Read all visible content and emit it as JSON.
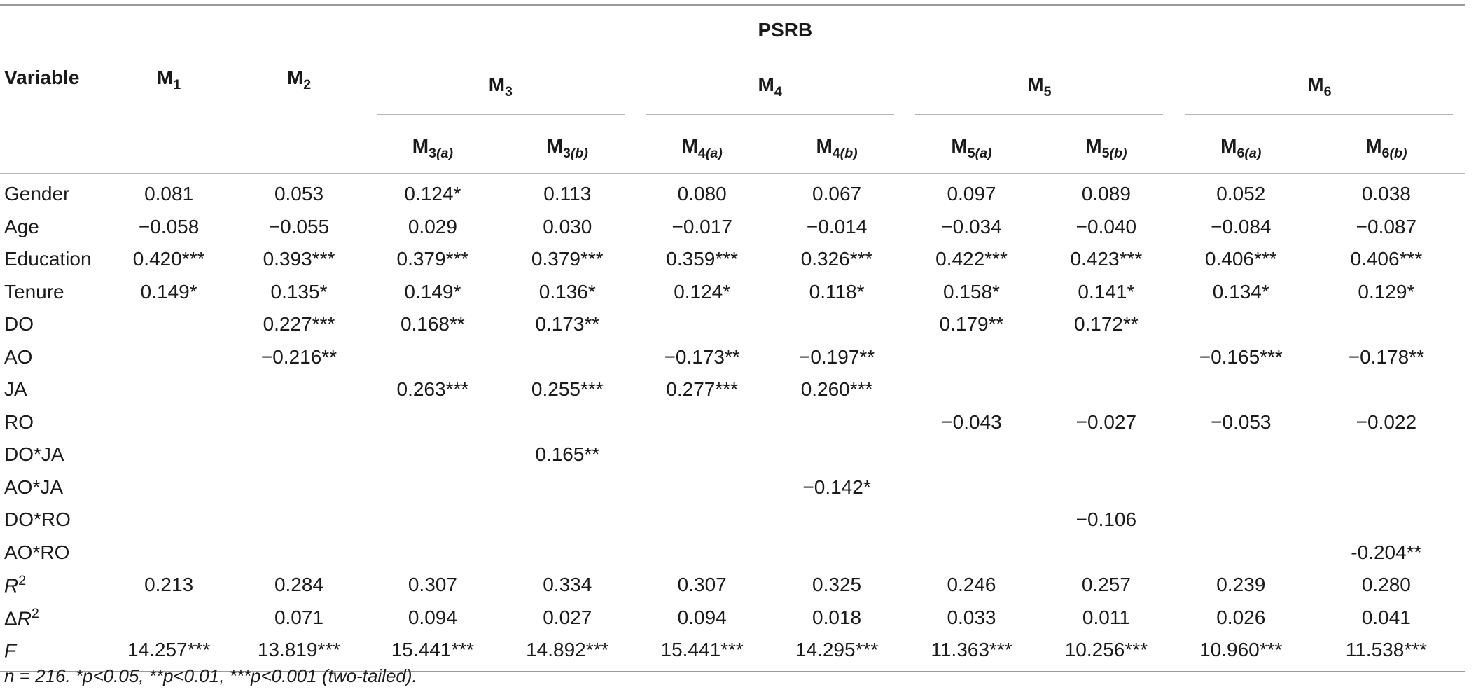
{
  "dependent_variable": "PSRB",
  "variable_header": "Variable",
  "models": {
    "m1": {
      "base": "M",
      "sub": "1"
    },
    "m2": {
      "base": "M",
      "sub": "2"
    },
    "m3": {
      "base": "M",
      "sub": "3",
      "a_sub": "3",
      "a_tag": "(a)",
      "b_sub": "3",
      "b_tag": "(b)"
    },
    "m4": {
      "base": "M",
      "sub": "4",
      "a_sub": "4",
      "a_tag": "(a)",
      "b_sub": "4",
      "b_tag": "(b)"
    },
    "m5": {
      "base": "M",
      "sub": "5",
      "a_sub": "5",
      "a_tag": "(a)",
      "b_sub": "5",
      "b_tag": "(b)"
    },
    "m6": {
      "base": "M",
      "sub": "6",
      "a_sub": "6",
      "a_tag": "(a)",
      "b_sub": "6",
      "b_tag": "(b)"
    }
  },
  "rows": [
    {
      "label": "Gender",
      "cells": [
        "0.081",
        "0.053",
        "0.124*",
        "0.113",
        "0.080",
        "0.067",
        "0.097",
        "0.089",
        "0.052",
        "0.038"
      ]
    },
    {
      "label": "Age",
      "cells": [
        "−0.058",
        "−0.055",
        "0.029",
        "0.030",
        "−0.017",
        "−0.014",
        "−0.034",
        "−0.040",
        "−0.084",
        "−0.087"
      ]
    },
    {
      "label": "Education",
      "cells": [
        "0.420***",
        "0.393***",
        "0.379***",
        "0.379***",
        "0.359***",
        "0.326***",
        "0.422***",
        "0.423***",
        "0.406***",
        "0.406***"
      ]
    },
    {
      "label": "Tenure",
      "cells": [
        "0.149*",
        "0.135*",
        "0.149*",
        "0.136*",
        "0.124*",
        "0.118*",
        "0.158*",
        "0.141*",
        "0.134*",
        "0.129*"
      ]
    },
    {
      "label": "DO",
      "cells": [
        "",
        "0.227***",
        "0.168**",
        "0.173**",
        "",
        "",
        "0.179**",
        "0.172**",
        "",
        ""
      ]
    },
    {
      "label": "AO",
      "cells": [
        "",
        "−0.216**",
        "",
        "",
        "−0.173**",
        "−0.197**",
        "",
        "",
        "−0.165***",
        "−0.178**"
      ]
    },
    {
      "label": "JA",
      "cells": [
        "",
        "",
        "0.263***",
        "0.255***",
        "0.277***",
        "0.260***",
        "",
        "",
        "",
        ""
      ]
    },
    {
      "label": "RO",
      "cells": [
        "",
        "",
        "",
        "",
        "",
        "",
        "−0.043",
        "−0.027",
        "−0.053",
        "−0.022"
      ]
    },
    {
      "label": "DO*JA",
      "cells": [
        "",
        "",
        "",
        "0.165**",
        "",
        "",
        "",
        "",
        "",
        ""
      ]
    },
    {
      "label": "AO*JA",
      "cells": [
        "",
        "",
        "",
        "",
        "",
        "−0.142*",
        "",
        "",
        "",
        ""
      ]
    },
    {
      "label": "DO*RO",
      "cells": [
        "",
        "",
        "",
        "",
        "",
        "",
        "",
        "−0.106",
        "",
        ""
      ]
    },
    {
      "label": "AO*RO",
      "cells": [
        "",
        "",
        "",
        "",
        "",
        "",
        "",
        "",
        "",
        "-0.204**"
      ]
    }
  ],
  "stats": [
    {
      "label_base": "R",
      "label_sup": "2",
      "label_prefix": "",
      "cells": [
        "0.213",
        "0.284",
        "0.307",
        "0.334",
        "0.307",
        "0.325",
        "0.246",
        "0.257",
        "0.239",
        "0.280"
      ]
    },
    {
      "label_base": "R",
      "label_sup": "2",
      "label_prefix": "Δ",
      "cells": [
        "",
        "0.071",
        "0.094",
        "0.027",
        "0.094",
        "0.018",
        "0.033",
        "0.011",
        "0.026",
        "0.041"
      ]
    },
    {
      "label_base": "F",
      "label_sup": "",
      "label_prefix": "",
      "cells": [
        "14.257***",
        "13.819***",
        "15.441***",
        "14.892***",
        "15.441***",
        "14.295***",
        "11.363***",
        "10.256***",
        "10.960***",
        "11.538***"
      ]
    }
  ],
  "note": "n = 216. *p<0.05, **p<0.01, ***p<0.001 (two-tailed)."
}
